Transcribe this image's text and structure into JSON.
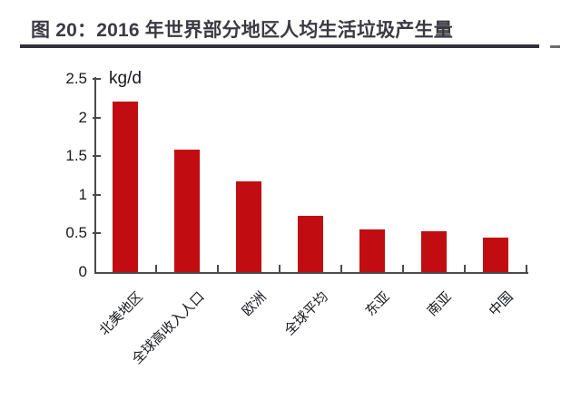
{
  "title": "图 20：2016 年世界部分地区人均生活垃圾产生量",
  "chart_data": {
    "type": "bar",
    "title": "图 20：2016 年世界部分地区人均生活垃圾产生量",
    "unit_label": "kg/d",
    "categories": [
      "北美地区",
      "全球高收入人口",
      "欧洲",
      "全球平均",
      "东亚",
      "南亚",
      "中国"
    ],
    "values": [
      2.21,
      1.59,
      1.17,
      0.73,
      0.55,
      0.53,
      0.45
    ],
    "y_ticks": [
      0,
      0.5,
      1,
      1.5,
      2,
      2.5
    ],
    "y_tick_labels": [
      "0",
      "0.5",
      "1",
      "1.5",
      "2",
      "2.5"
    ],
    "ylim": [
      0,
      2.5
    ],
    "xlabel": "",
    "ylabel": "kg/d",
    "grid": false,
    "legend": false,
    "bar_color": "#c10d11"
  },
  "colors": {
    "bar": "#c10d11",
    "axis": "#4a4a4a",
    "title_text": "#3a3a42",
    "title_underline": "#32323a",
    "title_dash": "#6d6d74",
    "axis_label_text": "#17191d",
    "background": "#ffffff"
  }
}
